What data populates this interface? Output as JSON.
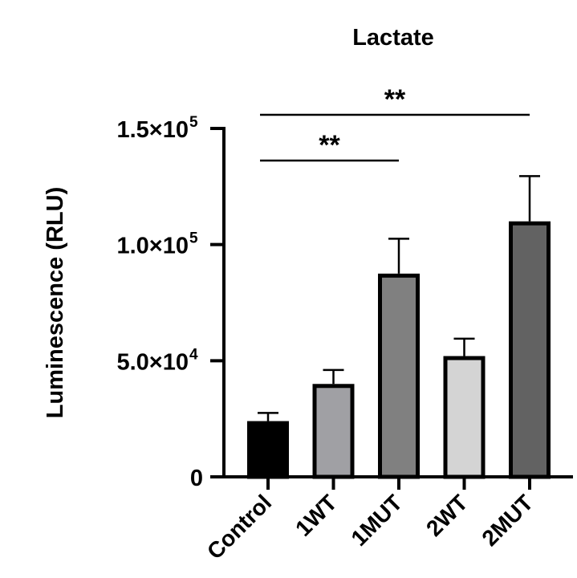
{
  "chart_data": {
    "type": "bar",
    "title": "Lactate",
    "xlabel": "",
    "ylabel": "Luminescence (RLU)",
    "ylim": [
      0,
      150000
    ],
    "yticks": [
      {
        "value": 0,
        "label": "0"
      },
      {
        "value": 50000,
        "label": "5.0×10",
        "exp": "4"
      },
      {
        "value": 100000,
        "label": "1.0×10",
        "exp": "5"
      },
      {
        "value": 150000,
        "label": "1.5×10",
        "exp": "5"
      }
    ],
    "categories": [
      "Control",
      "1WT",
      "1MUT",
      "2WT",
      "2MUT"
    ],
    "values": [
      24000,
      40000,
      87500,
      52000,
      110000
    ],
    "error_upper": [
      27500,
      46000,
      102500,
      59500,
      129500
    ],
    "colors": [
      "#000000",
      "#a0a0a4",
      "#808080",
      "#d4d4d4",
      "#626262"
    ],
    "grid": false,
    "legend": null,
    "annotations": [
      {
        "from": "Control",
        "to": "1MUT",
        "label": "**"
      },
      {
        "from": "Control",
        "to": "2MUT",
        "label": "**"
      }
    ]
  }
}
